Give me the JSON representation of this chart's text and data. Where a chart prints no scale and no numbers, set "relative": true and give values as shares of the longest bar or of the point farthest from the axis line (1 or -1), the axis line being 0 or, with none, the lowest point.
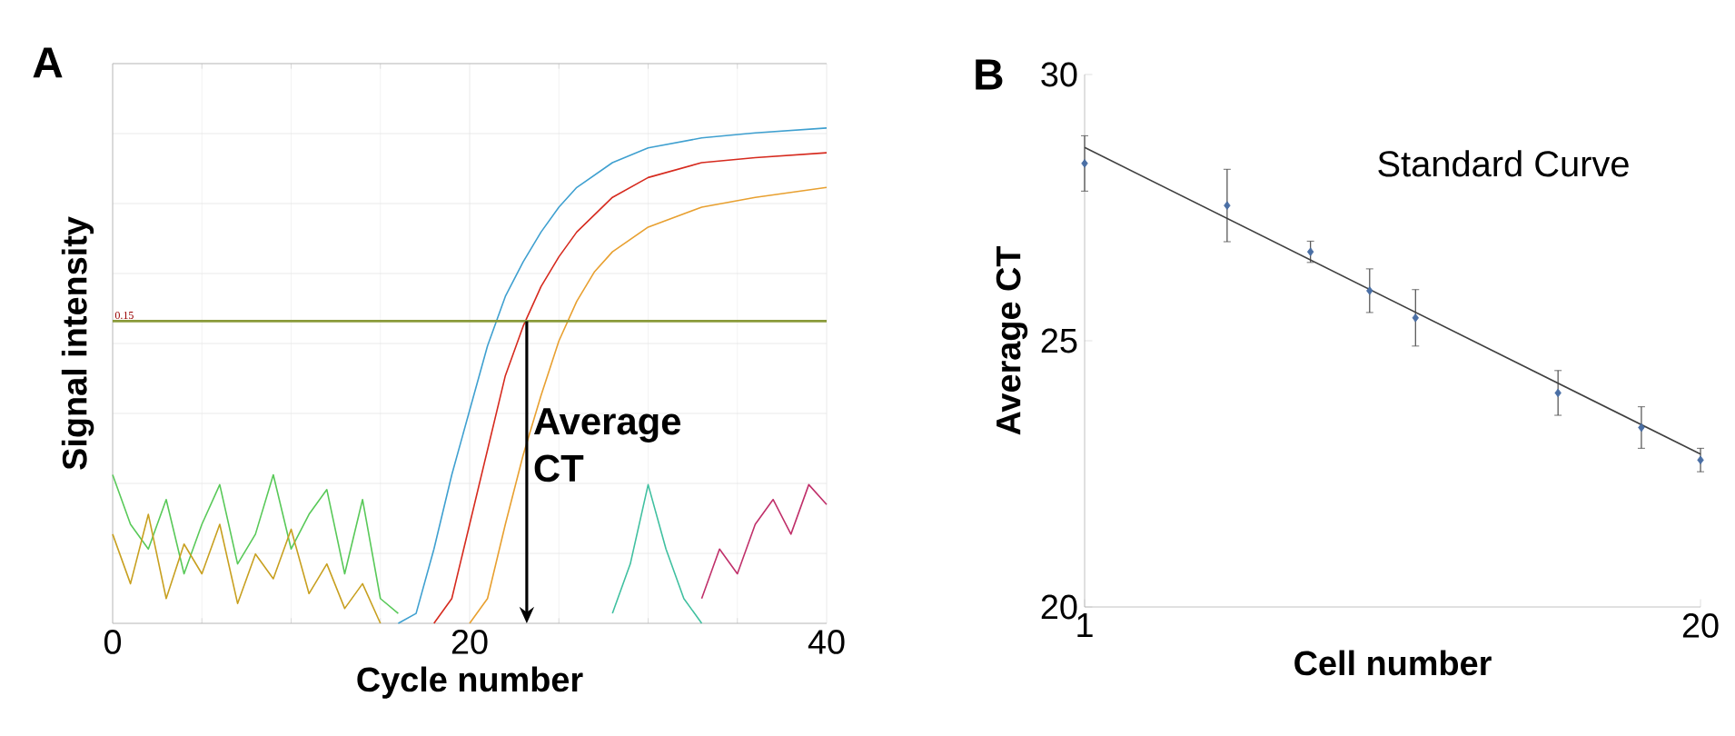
{
  "chart_data": [
    {
      "type": "line",
      "title": "A",
      "xlabel": "Cycle number",
      "ylabel": "Signal intensity",
      "relative": true,
      "xlim": [
        0,
        40
      ],
      "xticks": [
        0,
        20,
        40
      ],
      "tick_labels": "x",
      "grid": true,
      "marker": "none",
      "ref_lines": [
        {
          "axis": "y",
          "value": 0.61,
          "color": "#8a9a3a"
        }
      ],
      "annotations": [
        {
          "text": "Average CT",
          "x": 23.2,
          "y": 0.36
        },
        "0.15"
      ],
      "series": [
        {
          "color": "#3fa0d0",
          "x": [
            16,
            17,
            18,
            19,
            20,
            21,
            22,
            23,
            24,
            25,
            26,
            28,
            30,
            33,
            36,
            40
          ],
          "values": [
            0,
            0.02,
            0.15,
            0.3,
            0.43,
            0.56,
            0.66,
            0.73,
            0.79,
            0.84,
            0.88,
            0.93,
            0.96,
            0.98,
            0.99,
            1.0
          ]
        },
        {
          "color": "#d62a1e",
          "x": [
            18,
            19,
            20,
            21,
            22,
            23,
            24,
            25,
            26,
            28,
            30,
            33,
            36,
            40
          ],
          "values": [
            0,
            0.05,
            0.2,
            0.35,
            0.5,
            0.6,
            0.68,
            0.74,
            0.79,
            0.86,
            0.9,
            0.93,
            0.94,
            0.95
          ]
        },
        {
          "color": "#e8a030",
          "x": [
            20,
            21,
            22,
            23,
            24,
            25,
            26,
            27,
            28,
            30,
            33,
            36,
            40
          ],
          "values": [
            0,
            0.05,
            0.2,
            0.34,
            0.46,
            0.57,
            0.65,
            0.71,
            0.75,
            0.8,
            0.84,
            0.86,
            0.88
          ]
        },
        {
          "color": "#59c959",
          "x": [
            0,
            1,
            2,
            3,
            4,
            5,
            6,
            7,
            8,
            9,
            10,
            11,
            12,
            13,
            14,
            15,
            16
          ],
          "values": [
            0.3,
            0.2,
            0.15,
            0.25,
            0.1,
            0.2,
            0.28,
            0.12,
            0.18,
            0.3,
            0.15,
            0.22,
            0.27,
            0.1,
            0.25,
            0.05,
            0.02
          ]
        },
        {
          "color": "#c8a020",
          "x": [
            0,
            1,
            2,
            3,
            4,
            5,
            6,
            7,
            8,
            9,
            10,
            11,
            12,
            13,
            14,
            15
          ],
          "values": [
            0.18,
            0.08,
            0.22,
            0.05,
            0.16,
            0.1,
            0.2,
            0.04,
            0.14,
            0.09,
            0.19,
            0.06,
            0.12,
            0.03,
            0.08,
            0
          ]
        },
        {
          "color": "#40c0a0",
          "x": [
            28,
            29,
            30,
            31,
            32,
            33
          ],
          "values": [
            0.02,
            0.12,
            0.28,
            0.15,
            0.05,
            0
          ]
        },
        {
          "color": "#c0306a",
          "x": [
            33,
            34,
            35,
            36,
            37,
            38,
            39,
            40
          ],
          "values": [
            0.05,
            0.15,
            0.1,
            0.2,
            0.25,
            0.18,
            0.28,
            0.24
          ]
        }
      ]
    },
    {
      "type": "scatter",
      "title": "B",
      "xlabel": "Cell number",
      "ylabel": "Average CT",
      "log": "x",
      "xlim": [
        1,
        20
      ],
      "xticks": [
        1,
        20
      ],
      "ylim": [
        20,
        30
      ],
      "yticks": [
        20,
        25,
        30
      ],
      "marker": "diamond",
      "annotations": [
        "Standard Curve"
      ],
      "series": [
        {
          "color": "#4a6fa5",
          "x": [
            1,
            2,
            3,
            4,
            5,
            10,
            15,
            20
          ],
          "values": [
            28.33,
            27.54,
            26.67,
            25.94,
            25.43,
            24.02,
            23.37,
            22.76
          ],
          "errors": [
            0.52,
            0.68,
            0.2,
            0.41,
            0.53,
            0.42,
            0.39,
            0.22
          ]
        },
        {
          "type": "line",
          "marker": "none",
          "color": "#404040",
          "x": [
            1,
            20
          ],
          "values": [
            28.63,
            22.87
          ]
        }
      ]
    }
  ]
}
